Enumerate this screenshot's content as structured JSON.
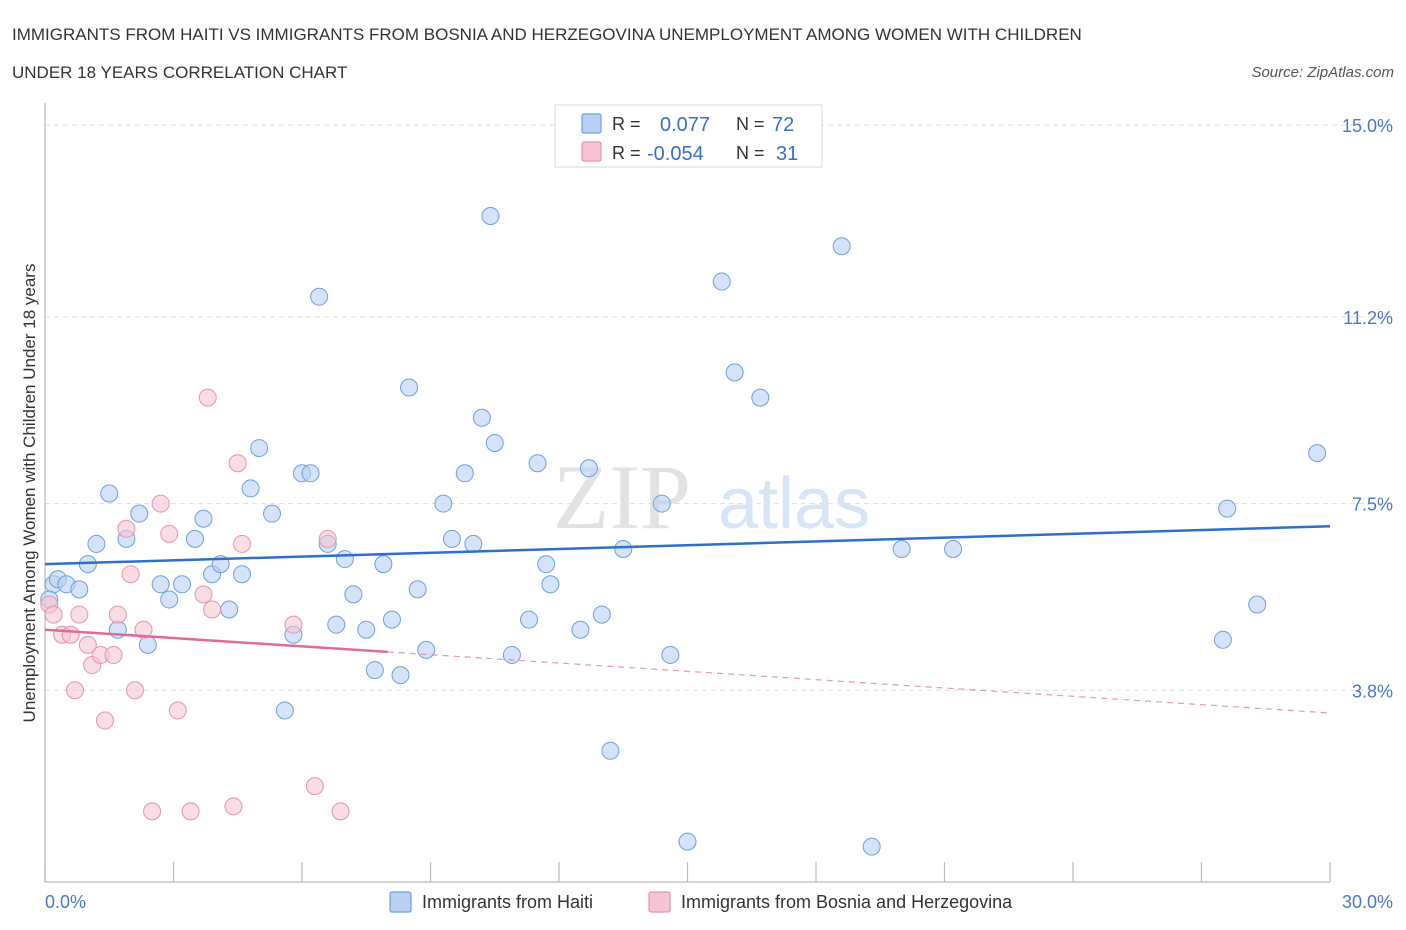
{
  "title_line1": "IMMIGRANTS FROM HAITI VS IMMIGRANTS FROM BOSNIA AND HERZEGOVINA UNEMPLOYMENT AMONG WOMEN WITH CHILDREN",
  "title_line2": "UNDER 18 YEARS CORRELATION CHART",
  "source": "Source: ZipAtlas.com",
  "watermark": {
    "zip": "ZIP",
    "atlas": "atlas"
  },
  "colors": {
    "haiti_fill": "#b8d1f3",
    "haiti_stroke": "#6f9fdc",
    "haiti_line": "#2f6fcc",
    "bosnia_fill": "#f6c4d3",
    "bosnia_stroke": "#e593ae",
    "bosnia_line": "#e0699a",
    "grid": "#dddddd",
    "tick_text": "#4a78c2"
  },
  "legend": {
    "r_label": "R =",
    "n_label": "N =",
    "rows": [
      {
        "r": "0.077",
        "n": "72"
      },
      {
        "r": "-0.054",
        "n": "31"
      }
    ]
  },
  "chart_data": {
    "type": "scatter",
    "title": "IMMIGRANTS FROM HAITI VS IMMIGRANTS FROM BOSNIA AND HERZEGOVINA UNEMPLOYMENT AMONG WOMEN WITH CHILDREN UNDER 18 YEARS CORRELATION CHART",
    "xlabel": "",
    "ylabel": "Unemployment Among Women with Children Under 18 years",
    "xlim": [
      0,
      30
    ],
    "ylim": [
      0,
      15.3
    ],
    "x_tick_labels": [
      "0.0%",
      "30.0%"
    ],
    "y_ticks": [
      3.8,
      7.5,
      11.2,
      15.0
    ],
    "y_tick_labels": [
      "3.8%",
      "7.5%",
      "11.2%",
      "15.0%"
    ],
    "grid": true,
    "legend_position": "top-center",
    "series": [
      {
        "name": "Immigrants from Haiti",
        "trend": {
          "x": [
            0,
            30
          ],
          "y": [
            6.3,
            7.05
          ]
        },
        "points": [
          [
            0.2,
            5.9
          ],
          [
            0.3,
            6.0
          ],
          [
            0.5,
            5.9
          ],
          [
            0.8,
            5.8
          ],
          [
            1.0,
            6.3
          ],
          [
            1.2,
            6.7
          ],
          [
            1.5,
            7.7
          ],
          [
            1.7,
            5.0
          ],
          [
            1.9,
            6.8
          ],
          [
            2.2,
            7.3
          ],
          [
            2.4,
            4.7
          ],
          [
            2.7,
            5.9
          ],
          [
            2.9,
            5.6
          ],
          [
            3.2,
            5.9
          ],
          [
            3.5,
            6.8
          ],
          [
            3.7,
            7.2
          ],
          [
            3.9,
            6.1
          ],
          [
            4.1,
            6.3
          ],
          [
            4.3,
            5.4
          ],
          [
            4.6,
            6.1
          ],
          [
            4.8,
            7.8
          ],
          [
            5.0,
            8.6
          ],
          [
            5.3,
            7.3
          ],
          [
            5.6,
            3.4
          ],
          [
            5.8,
            4.9
          ],
          [
            6.0,
            8.1
          ],
          [
            6.2,
            8.1
          ],
          [
            6.4,
            11.6
          ],
          [
            6.6,
            6.7
          ],
          [
            6.8,
            5.1
          ],
          [
            7.0,
            6.4
          ],
          [
            7.2,
            5.7
          ],
          [
            7.5,
            5.0
          ],
          [
            7.7,
            4.2
          ],
          [
            7.9,
            6.3
          ],
          [
            8.1,
            5.2
          ],
          [
            8.3,
            4.1
          ],
          [
            8.5,
            9.8
          ],
          [
            8.7,
            5.8
          ],
          [
            8.9,
            4.6
          ],
          [
            9.3,
            7.5
          ],
          [
            9.5,
            6.8
          ],
          [
            9.8,
            8.1
          ],
          [
            10.0,
            6.7
          ],
          [
            10.2,
            9.2
          ],
          [
            10.4,
            13.2
          ],
          [
            10.5,
            8.7
          ],
          [
            10.9,
            4.5
          ],
          [
            11.3,
            5.2
          ],
          [
            11.5,
            8.3
          ],
          [
            11.7,
            6.3
          ],
          [
            11.8,
            5.9
          ],
          [
            12.5,
            5.0
          ],
          [
            12.7,
            8.2
          ],
          [
            13.0,
            5.3
          ],
          [
            13.2,
            2.6
          ],
          [
            13.5,
            6.6
          ],
          [
            14.4,
            7.5
          ],
          [
            14.6,
            4.5
          ],
          [
            15.0,
            0.8
          ],
          [
            15.8,
            11.9
          ],
          [
            16.1,
            10.1
          ],
          [
            16.7,
            9.6
          ],
          [
            18.6,
            12.6
          ],
          [
            19.3,
            0.7
          ],
          [
            20.0,
            6.6
          ],
          [
            21.2,
            6.6
          ],
          [
            27.5,
            4.8
          ],
          [
            27.6,
            7.4
          ],
          [
            28.3,
            5.5
          ],
          [
            29.7,
            8.5
          ],
          [
            0.1,
            5.6
          ]
        ]
      },
      {
        "name": "Immigrants from Bosnia and Herzegovina",
        "trend": {
          "x": [
            0,
            30
          ],
          "y": [
            5.0,
            3.35
          ]
        },
        "trend_solid_until": 8.0,
        "points": [
          [
            0.1,
            5.5
          ],
          [
            0.2,
            5.3
          ],
          [
            0.4,
            4.9
          ],
          [
            0.6,
            4.9
          ],
          [
            0.7,
            3.8
          ],
          [
            0.8,
            5.3
          ],
          [
            1.0,
            4.7
          ],
          [
            1.1,
            4.3
          ],
          [
            1.3,
            4.5
          ],
          [
            1.4,
            3.2
          ],
          [
            1.6,
            4.5
          ],
          [
            1.7,
            5.3
          ],
          [
            1.9,
            7.0
          ],
          [
            2.0,
            6.1
          ],
          [
            2.1,
            3.8
          ],
          [
            2.3,
            5.0
          ],
          [
            2.5,
            1.4
          ],
          [
            2.7,
            7.5
          ],
          [
            2.9,
            6.9
          ],
          [
            3.1,
            3.4
          ],
          [
            3.4,
            1.4
          ],
          [
            3.7,
            5.7
          ],
          [
            3.8,
            9.6
          ],
          [
            3.9,
            5.4
          ],
          [
            4.4,
            1.5
          ],
          [
            4.5,
            8.3
          ],
          [
            4.6,
            6.7
          ],
          [
            5.8,
            5.1
          ],
          [
            6.3,
            1.9
          ],
          [
            6.6,
            6.8
          ],
          [
            6.9,
            1.4
          ]
        ]
      }
    ]
  }
}
